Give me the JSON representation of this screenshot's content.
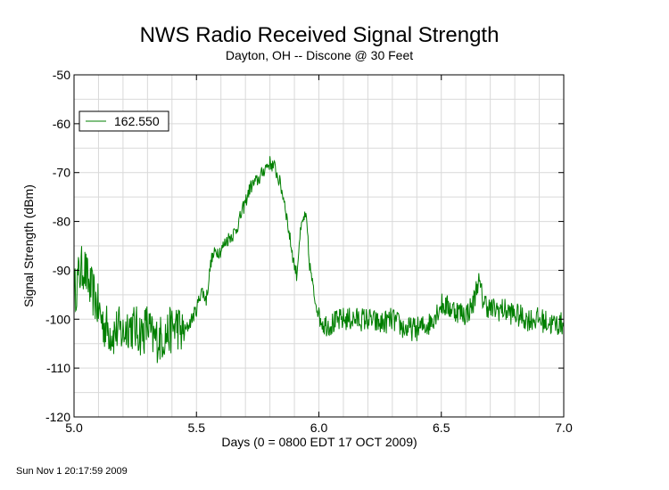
{
  "footer": {
    "timestamp": "Sun Nov  1 20:17:59 2009"
  },
  "colors": {
    "series": "#007f00",
    "grid": "#d9d9d9",
    "frame": "#000000"
  },
  "chart_data": {
    "type": "line",
    "title": "NWS Radio Received Signal Strength",
    "subtitle": "Dayton, OH -- Discone @ 30 Feet",
    "xlabel": "Days (0 = 0800 EDT 17 OCT 2009)",
    "ylabel": "Signal Strength (dBm)",
    "xlim": [
      5.0,
      7.0
    ],
    "ylim": [
      -120,
      -50
    ],
    "x_ticks": [
      5.0,
      5.5,
      6.0,
      6.5,
      7.0
    ],
    "x_tick_labels": [
      "5.0",
      "5.5",
      "6.0",
      "6.5",
      "7.0"
    ],
    "x_minor_step": 0.1,
    "y_ticks": [
      -120,
      -110,
      -100,
      -90,
      -80,
      -70,
      -60,
      -50
    ],
    "y_tick_labels": [
      "-120",
      "-110",
      "-100",
      "-90",
      "-80",
      "-70",
      "-60",
      "-50"
    ],
    "y_minor_step": 5,
    "grid": true,
    "legend_position": "top-left",
    "series": [
      {
        "name": "162.550",
        "color": "#007f00",
        "x": [
          5.0,
          5.02,
          5.04,
          5.06,
          5.08,
          5.1,
          5.12,
          5.14,
          5.16,
          5.18,
          5.2,
          5.22,
          5.25,
          5.28,
          5.3,
          5.32,
          5.35,
          5.38,
          5.4,
          5.42,
          5.44,
          5.46,
          5.48,
          5.5,
          5.52,
          5.54,
          5.56,
          5.58,
          5.6,
          5.62,
          5.64,
          5.66,
          5.68,
          5.7,
          5.72,
          5.74,
          5.76,
          5.78,
          5.8,
          5.82,
          5.84,
          5.86,
          5.88,
          5.9,
          5.91,
          5.92,
          5.93,
          5.94,
          5.95,
          5.96,
          5.98,
          6.0,
          6.02,
          6.05,
          6.1,
          6.15,
          6.2,
          6.25,
          6.3,
          6.35,
          6.4,
          6.45,
          6.5,
          6.55,
          6.6,
          6.63,
          6.65,
          6.67,
          6.7,
          6.75,
          6.8,
          6.85,
          6.9,
          6.95,
          7.0
        ],
        "y": [
          -95,
          -91,
          -89,
          -93,
          -95,
          -98,
          -101,
          -102,
          -103,
          -102,
          -103,
          -101,
          -102,
          -103,
          -101,
          -104,
          -104,
          -103,
          -102,
          -101,
          -103,
          -102,
          -100,
          -98,
          -94,
          -96,
          -88,
          -86,
          -86,
          -84,
          -83,
          -82,
          -79,
          -76,
          -73,
          -72,
          -71,
          -69,
          -68,
          -69,
          -72,
          -76,
          -83,
          -89,
          -91,
          -84,
          -81,
          -79,
          -80,
          -88,
          -95,
          -99,
          -101,
          -101,
          -100,
          -100,
          -100,
          -101,
          -100,
          -102,
          -102,
          -101,
          -97,
          -98,
          -99,
          -97,
          -92,
          -96,
          -98,
          -98,
          -99,
          -100,
          -100,
          -101,
          -101
        ]
      }
    ]
  }
}
